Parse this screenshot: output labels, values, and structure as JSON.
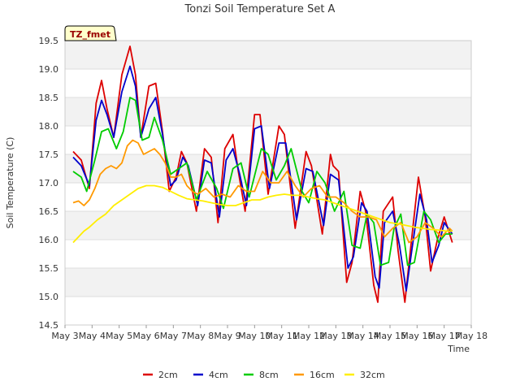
{
  "chart_data": {
    "type": "line",
    "title": "Tonzi Soil Temperature Set A",
    "xlabel": "Time",
    "ylabel": "Soil Temperature (C)",
    "annotation": "TZ_fmet",
    "xlim": [
      3,
      18
    ],
    "ylim": [
      14.5,
      19.5
    ],
    "x_ticks": [
      3,
      4,
      5,
      6,
      7,
      8,
      9,
      10,
      11,
      12,
      13,
      14,
      15,
      16,
      17,
      18
    ],
    "x_tick_labels": [
      "May 3",
      "May 4",
      "May 5",
      "May 6",
      "May 7",
      "May 8",
      "May 9",
      "May 10",
      "May 11",
      "May 12",
      "May 13",
      "May 14",
      "May 15",
      "May 16",
      "May 17",
      "May 18"
    ],
    "y_ticks": [
      14.5,
      15.0,
      15.5,
      16.0,
      16.5,
      17.0,
      17.5,
      18.0,
      18.5,
      19.0,
      19.5
    ],
    "y_tick_labels": [
      "14.5",
      "15.0",
      "15.5",
      "16.0",
      "16.5",
      "17.0",
      "17.5",
      "18.0",
      "18.5",
      "19.0",
      "19.5"
    ],
    "grid": true,
    "legend_position": "bottom",
    "series": [
      {
        "name": "2cm",
        "color": "#dd0000",
        "x": [
          3.3,
          3.6,
          3.9,
          4.15,
          4.35,
          4.55,
          4.8,
          5.1,
          5.4,
          5.6,
          5.8,
          6.1,
          6.35,
          6.6,
          6.85,
          7.1,
          7.3,
          7.5,
          7.85,
          8.15,
          8.4,
          8.65,
          8.9,
          9.2,
          9.4,
          9.65,
          10.0,
          10.2,
          10.5,
          10.9,
          11.1,
          11.5,
          11.9,
          12.1,
          12.5,
          12.8,
          12.9,
          13.1,
          13.4,
          13.6,
          13.9,
          14.1,
          14.4,
          14.55,
          14.75,
          15.1,
          15.3,
          15.55,
          15.75,
          16.05,
          16.3,
          16.5,
          16.75,
          17.0,
          17.3
        ],
        "y": [
          17.55,
          17.4,
          16.9,
          18.4,
          18.8,
          18.3,
          17.8,
          18.9,
          19.4,
          18.9,
          17.8,
          18.7,
          18.75,
          17.9,
          16.85,
          17.1,
          17.55,
          17.35,
          16.5,
          17.6,
          17.45,
          16.3,
          17.6,
          17.85,
          17.2,
          16.5,
          18.2,
          18.2,
          16.8,
          18.0,
          17.85,
          16.2,
          17.55,
          17.3,
          16.1,
          17.5,
          17.3,
          17.2,
          15.25,
          15.6,
          16.85,
          16.5,
          15.2,
          14.9,
          16.5,
          16.75,
          15.8,
          14.9,
          15.8,
          17.1,
          16.4,
          15.45,
          16.0,
          16.4,
          15.95
        ]
      },
      {
        "name": "4cm",
        "color": "#0000cc",
        "x": [
          3.3,
          3.6,
          3.9,
          4.15,
          4.35,
          4.55,
          4.8,
          5.1,
          5.4,
          5.6,
          5.8,
          6.1,
          6.35,
          6.6,
          6.9,
          7.1,
          7.35,
          7.55,
          7.9,
          8.15,
          8.4,
          8.7,
          8.95,
          9.2,
          9.45,
          9.7,
          10.0,
          10.25,
          10.55,
          10.9,
          11.15,
          11.55,
          11.9,
          12.15,
          12.55,
          12.8,
          12.95,
          13.1,
          13.45,
          13.65,
          13.95,
          14.15,
          14.45,
          14.6,
          14.8,
          15.1,
          15.35,
          15.6,
          15.8,
          16.1,
          16.35,
          16.55,
          16.8,
          17.0,
          17.3
        ],
        "y": [
          17.45,
          17.3,
          16.95,
          18.1,
          18.45,
          18.2,
          17.8,
          18.6,
          19.05,
          18.7,
          17.8,
          18.3,
          18.5,
          17.85,
          16.95,
          17.05,
          17.45,
          17.3,
          16.6,
          17.4,
          17.35,
          16.4,
          17.4,
          17.6,
          17.15,
          16.6,
          17.95,
          18.0,
          16.9,
          17.7,
          17.7,
          16.35,
          17.25,
          17.2,
          16.25,
          17.15,
          17.1,
          17.05,
          15.5,
          15.7,
          16.65,
          16.5,
          15.35,
          15.15,
          16.3,
          16.5,
          15.9,
          15.1,
          15.8,
          16.8,
          16.35,
          15.6,
          15.9,
          16.3,
          16.1
        ]
      },
      {
        "name": "8cm",
        "color": "#00cc00",
        "x": [
          3.3,
          3.6,
          3.8,
          4.1,
          4.35,
          4.6,
          4.9,
          5.15,
          5.4,
          5.6,
          5.85,
          6.1,
          6.3,
          6.6,
          6.9,
          7.2,
          7.5,
          7.85,
          8.25,
          8.6,
          8.85,
          9.2,
          9.5,
          9.8,
          10.25,
          10.5,
          10.8,
          11.1,
          11.35,
          11.75,
          12.0,
          12.3,
          12.6,
          12.95,
          13.3,
          13.6,
          13.9,
          14.15,
          14.4,
          14.65,
          14.95,
          15.15,
          15.4,
          15.65,
          15.9,
          16.25,
          16.5,
          16.8,
          17.05,
          17.3
        ],
        "y": [
          17.2,
          17.1,
          16.85,
          17.4,
          17.9,
          17.95,
          17.6,
          17.9,
          18.5,
          18.45,
          17.75,
          17.8,
          18.15,
          17.75,
          17.15,
          17.25,
          17.35,
          16.7,
          17.2,
          16.9,
          16.55,
          17.25,
          17.35,
          16.75,
          17.6,
          17.5,
          17.05,
          17.3,
          17.6,
          16.85,
          16.65,
          17.2,
          17.0,
          16.5,
          16.85,
          15.9,
          15.85,
          16.45,
          16.3,
          15.55,
          15.6,
          16.2,
          16.45,
          15.55,
          15.6,
          16.5,
          16.35,
          15.95,
          16.1,
          16.1
        ]
      },
      {
        "name": "16cm",
        "color": "#ff9900",
        "x": [
          3.3,
          3.5,
          3.7,
          3.9,
          4.1,
          4.3,
          4.5,
          4.7,
          4.9,
          5.1,
          5.3,
          5.5,
          5.7,
          5.9,
          6.1,
          6.3,
          6.5,
          6.7,
          6.9,
          7.1,
          7.3,
          7.5,
          7.7,
          7.9,
          8.2,
          8.5,
          8.8,
          9.1,
          9.4,
          9.7,
          10.0,
          10.3,
          10.6,
          10.9,
          11.2,
          11.5,
          11.8,
          12.1,
          12.4,
          12.7,
          13.0,
          13.3,
          13.6,
          13.9,
          14.2,
          14.5,
          14.8,
          15.1,
          15.4,
          15.7,
          16.0,
          16.3,
          16.6,
          16.9,
          17.2,
          17.3
        ],
        "y": [
          16.65,
          16.68,
          16.6,
          16.7,
          16.9,
          17.15,
          17.25,
          17.3,
          17.25,
          17.35,
          17.65,
          17.75,
          17.7,
          17.5,
          17.55,
          17.6,
          17.5,
          17.35,
          17.1,
          17.1,
          17.15,
          16.95,
          16.85,
          16.8,
          16.9,
          16.75,
          16.8,
          16.75,
          16.95,
          16.85,
          16.85,
          17.2,
          17.0,
          17.0,
          17.2,
          16.95,
          16.75,
          16.9,
          16.95,
          16.75,
          16.75,
          16.65,
          16.5,
          16.4,
          16.4,
          16.35,
          16.05,
          16.2,
          16.3,
          15.95,
          16.05,
          16.3,
          16.2,
          16.05,
          16.2,
          16.15
        ]
      },
      {
        "name": "32cm",
        "color": "#ffee00",
        "x": [
          3.3,
          3.5,
          3.7,
          3.9,
          4.2,
          4.5,
          4.8,
          5.1,
          5.4,
          5.7,
          6.0,
          6.3,
          6.6,
          6.9,
          7.2,
          7.5,
          7.8,
          8.1,
          8.4,
          8.7,
          9.0,
          9.3,
          9.6,
          9.9,
          10.2,
          10.5,
          10.8,
          11.1,
          11.4,
          11.7,
          12.0,
          12.3,
          12.6,
          12.9,
          13.2,
          13.5,
          13.8,
          14.1,
          14.4,
          14.7,
          15.0,
          15.3,
          15.6,
          15.9,
          16.2,
          16.5,
          16.8,
          17.1,
          17.3
        ],
        "y": [
          15.95,
          16.05,
          16.15,
          16.22,
          16.35,
          16.45,
          16.6,
          16.7,
          16.8,
          16.9,
          16.95,
          16.95,
          16.92,
          16.85,
          16.78,
          16.72,
          16.7,
          16.68,
          16.65,
          16.62,
          16.6,
          16.6,
          16.65,
          16.7,
          16.7,
          16.75,
          16.78,
          16.8,
          16.78,
          16.78,
          16.75,
          16.72,
          16.7,
          16.65,
          16.6,
          16.55,
          16.5,
          16.45,
          16.4,
          16.35,
          16.3,
          16.28,
          16.25,
          16.22,
          16.2,
          16.18,
          16.17,
          16.15,
          16.15
        ]
      }
    ]
  }
}
